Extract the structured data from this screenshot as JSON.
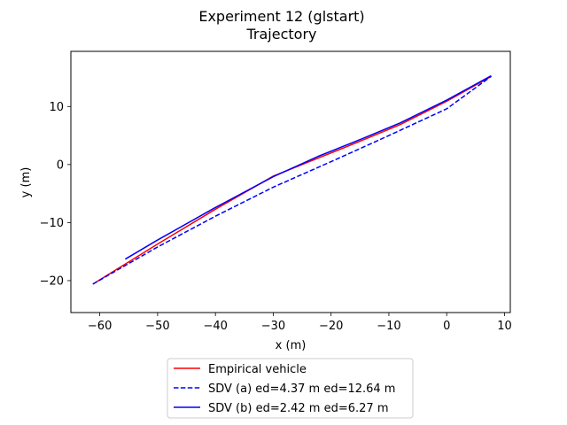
{
  "chart_data": {
    "type": "line",
    "title": "Experiment 12 (glstart)",
    "subtitle": "Trajectory",
    "xlabel": "x (m)",
    "ylabel": "y (m)",
    "xlim": [
      -65,
      11
    ],
    "ylim": [
      -25.5,
      19.5
    ],
    "xticks": [
      -60,
      -50,
      -40,
      -30,
      -20,
      -10,
      0,
      10
    ],
    "yticks": [
      -20,
      -10,
      0,
      10
    ],
    "xtick_labels": [
      "−60",
      "−50",
      "−40",
      "−30",
      "−20",
      "−10",
      "0",
      "10"
    ],
    "ytick_labels": [
      "−20",
      "−10",
      "0",
      "10"
    ],
    "grid": false,
    "legend_position": "below plot, centered",
    "series": [
      {
        "name": "Empirical vehicle",
        "color": "#ff0000",
        "style": "solid",
        "x": [
          -61.2,
          -50,
          -40,
          -30,
          -22,
          -15,
          -8,
          0,
          7.7
        ],
        "y": [
          -20.6,
          -13.7,
          -7.7,
          -2.0,
          1.2,
          4.0,
          6.9,
          10.9,
          15.2
        ]
      },
      {
        "name": "SDV (a) ed=4.37 m ed=12.64 m",
        "color": "#0000ff",
        "style": "dashed",
        "x": [
          -61.2,
          -50,
          -40,
          -30,
          -20,
          -10,
          0,
          7.7
        ],
        "y": [
          -20.6,
          -14.2,
          -8.9,
          -3.9,
          0.5,
          5.0,
          9.6,
          15.2
        ]
      },
      {
        "name": "SDV (b) ed=2.42 m ed=6.27 m",
        "color": "#0000ff",
        "style": "solid",
        "x": [
          -55.6,
          -50,
          -40,
          -30,
          -22,
          -15,
          -8,
          0,
          7.7
        ],
        "y": [
          -16.3,
          -13.0,
          -7.4,
          -2.1,
          1.5,
          4.3,
          7.2,
          11.1,
          15.3
        ]
      }
    ]
  }
}
